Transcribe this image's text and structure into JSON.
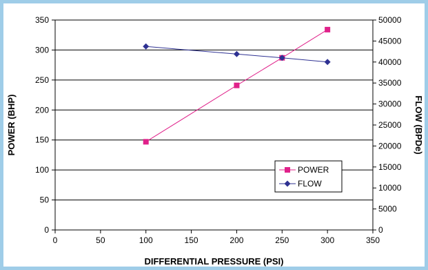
{
  "chart_data": {
    "type": "line",
    "xlabel": "DIFFERENTIAL PRESSURE (PSI)",
    "ylabel_left": "POWER (BHP)",
    "ylabel_right": "FLOW (BPDe)",
    "xlim": [
      0,
      350
    ],
    "xticks": [
      0,
      50,
      100,
      150,
      200,
      250,
      300,
      350
    ],
    "ylim_left": [
      0,
      350
    ],
    "yticks_left": [
      0,
      50,
      100,
      150,
      200,
      250,
      300,
      350
    ],
    "ylim_right": [
      0,
      50000
    ],
    "yticks_right": [
      0,
      5000,
      10000,
      15000,
      20000,
      25000,
      30000,
      35000,
      40000,
      45000,
      50000
    ],
    "grid": "horizontal",
    "legend_position": "lower-right",
    "series": [
      {
        "name": "POWER",
        "axis": "left",
        "color": "#e0218a",
        "marker": "square",
        "x": [
          100,
          200,
          250,
          300
        ],
        "y": [
          147,
          241,
          287,
          334
        ]
      },
      {
        "name": "FLOW",
        "axis": "right",
        "color": "#2e3192",
        "marker": "diamond",
        "x": [
          100,
          200,
          250,
          300
        ],
        "y": [
          43700,
          41900,
          41000,
          40000
        ]
      }
    ]
  }
}
